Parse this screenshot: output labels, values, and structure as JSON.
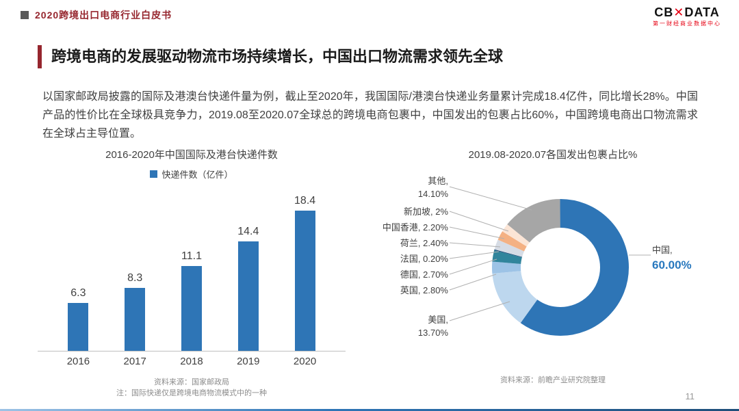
{
  "header": {
    "doc_title": "2020跨境出口电商行业白皮书",
    "logo_left": "CB",
    "logo_x": "✕",
    "logo_right": "DATA",
    "logo_subtitle": "第一财经商业数据中心"
  },
  "title": "跨境电商的发展驱动物流市场持续增长，中国出口物流需求领先全球",
  "intro": "以国家邮政局披露的国际及港澳台快递件量为例，截止至2020年，我国国际/港澳台快递业务量累计完成18.4亿件，同比增长28%。中国产品的性价比在全球极具竞争力，2019.08至2020.07全球总的跨境电商包裹中，中国发出的包裹占比60%，中国跨境电商出口物流需求在全球占主导位置。",
  "page_number": "11",
  "colors": {
    "accent_red": "#96262E",
    "bar_blue": "#2E75B6",
    "china_pct_blue": "#2878BE"
  },
  "chart_data": [
    {
      "type": "bar",
      "title": "2016-2020年中国国际及港台快递件数",
      "legend": "快递件数（亿件）",
      "categories": [
        "2016",
        "2017",
        "2018",
        "2019",
        "2020"
      ],
      "values": [
        6.3,
        8.3,
        11.1,
        14.4,
        18.4
      ],
      "ylabel": "快递件数（亿件）",
      "xlabel": "",
      "ylim": [
        0,
        18.4
      ],
      "grid": false,
      "source_note1": "资料来源：国家邮政局",
      "source_note2": "注：国际快递仅是跨境电商物流模式中的一种",
      "bar_color": "#2E75B6"
    },
    {
      "type": "pie",
      "subtype": "donut",
      "title": "2019.08-2020.07各国发出包裹占比%",
      "categories": [
        "中国",
        "美国",
        "英国",
        "德国",
        "法国",
        "荷兰",
        "中国香港",
        "新加坡",
        "其他"
      ],
      "values": [
        60.0,
        13.7,
        2.8,
        2.7,
        0.2,
        2.4,
        2.2,
        2.0,
        14.1
      ],
      "colors": [
        "#2E75B6",
        "#BDD7EE",
        "#9DC3E6",
        "#31859C",
        "#1F4E79",
        "#D6DCE5",
        "#F4B183",
        "#FBE5D6",
        "#A6A6A6"
      ],
      "start_angle_deg": 0,
      "direction": "clockwise",
      "source_note": "资料来源：前瞻产业研究院整理",
      "labels": [
        {
          "line1": "其他,",
          "line2": "14.10%"
        },
        {
          "line1": "新加坡, 2%"
        },
        {
          "line1": "中国香港, 2.20%"
        },
        {
          "line1": "荷兰, 2.40%"
        },
        {
          "line1": "法国, 0.20%"
        },
        {
          "line1": "德国, 2.70%"
        },
        {
          "line1": "英国, 2.80%"
        },
        {
          "line1": "美国,",
          "line2": "13.70%"
        },
        {
          "line1": "中国,",
          "line2": "60.00%"
        }
      ]
    }
  ]
}
